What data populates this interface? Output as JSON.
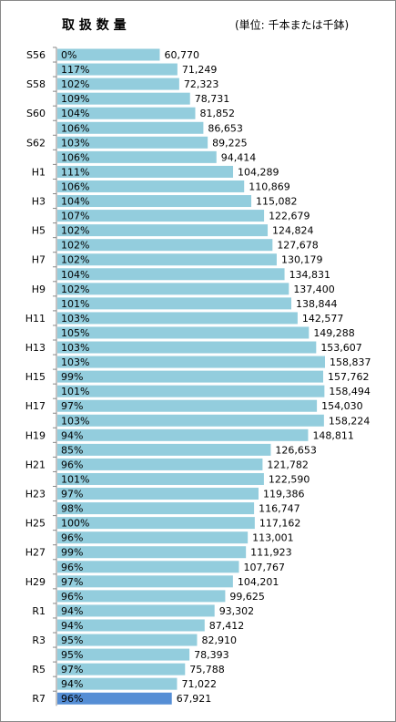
{
  "chart_data": {
    "type": "hbar",
    "title": "取 扱 数 量",
    "subtitle": "(単位: 千本または千鉢)",
    "categories": [
      "S56",
      null,
      "S58",
      null,
      "S60",
      null,
      "S62",
      null,
      "H1",
      null,
      "H3",
      null,
      "H5",
      null,
      "H7",
      null,
      "H9",
      null,
      "H11",
      null,
      "H13",
      null,
      "H15",
      null,
      "H17",
      null,
      "H19",
      null,
      "H21",
      null,
      "H23",
      null,
      "H25",
      null,
      "H27",
      null,
      "H29",
      null,
      "R1",
      null,
      "R3",
      null,
      "R5",
      null,
      "R7"
    ],
    "values": [
      60770,
      71249,
      72323,
      78731,
      81852,
      86653,
      89225,
      94414,
      104289,
      110869,
      115082,
      122679,
      124824,
      127678,
      130179,
      134831,
      137400,
      138844,
      142577,
      149288,
      153607,
      158837,
      157762,
      158494,
      154030,
      158224,
      148811,
      126653,
      121782,
      122590,
      119386,
      116747,
      117162,
      113001,
      111923,
      107767,
      104201,
      99625,
      93302,
      87412,
      82910,
      78393,
      75788,
      71022,
      67921
    ],
    "value_labels": [
      "60,770",
      "71,249",
      "72,323",
      "78,731",
      "81,852",
      "86,653",
      "89,225",
      "94,414",
      "104,289",
      "110,869",
      "115,082",
      "122,679",
      "124,824",
      "127,678",
      "130,179",
      "134,831",
      "137,400",
      "138,844",
      "142,577",
      "149,288",
      "153,607",
      "158,837",
      "157,762",
      "158,494",
      "154,030",
      "158,224",
      "148,811",
      "126,653",
      "121,782",
      "122,590",
      "119,386",
      "116,747",
      "117,162",
      "113,001",
      "111,923",
      "107,767",
      "104,201",
      "99,625",
      "93,302",
      "87,412",
      "82,910",
      "78,393",
      "75,788",
      "71,022",
      "67,921"
    ],
    "ratio_labels": [
      "0%",
      "117%",
      "102%",
      "109%",
      "104%",
      "106%",
      "103%",
      "106%",
      "111%",
      "106%",
      "104%",
      "107%",
      "102%",
      "102%",
      "102%",
      "104%",
      "102%",
      "101%",
      "103%",
      "105%",
      "103%",
      "103%",
      "99%",
      "101%",
      "97%",
      "103%",
      "94%",
      "85%",
      "96%",
      "101%",
      "97%",
      "98%",
      "100%",
      "96%",
      "99%",
      "96%",
      "97%",
      "96%",
      "94%",
      "94%",
      "95%",
      "95%",
      "97%",
      "94%",
      "96%"
    ],
    "color": "#93cddd",
    "last_color": "#558ed5"
  }
}
